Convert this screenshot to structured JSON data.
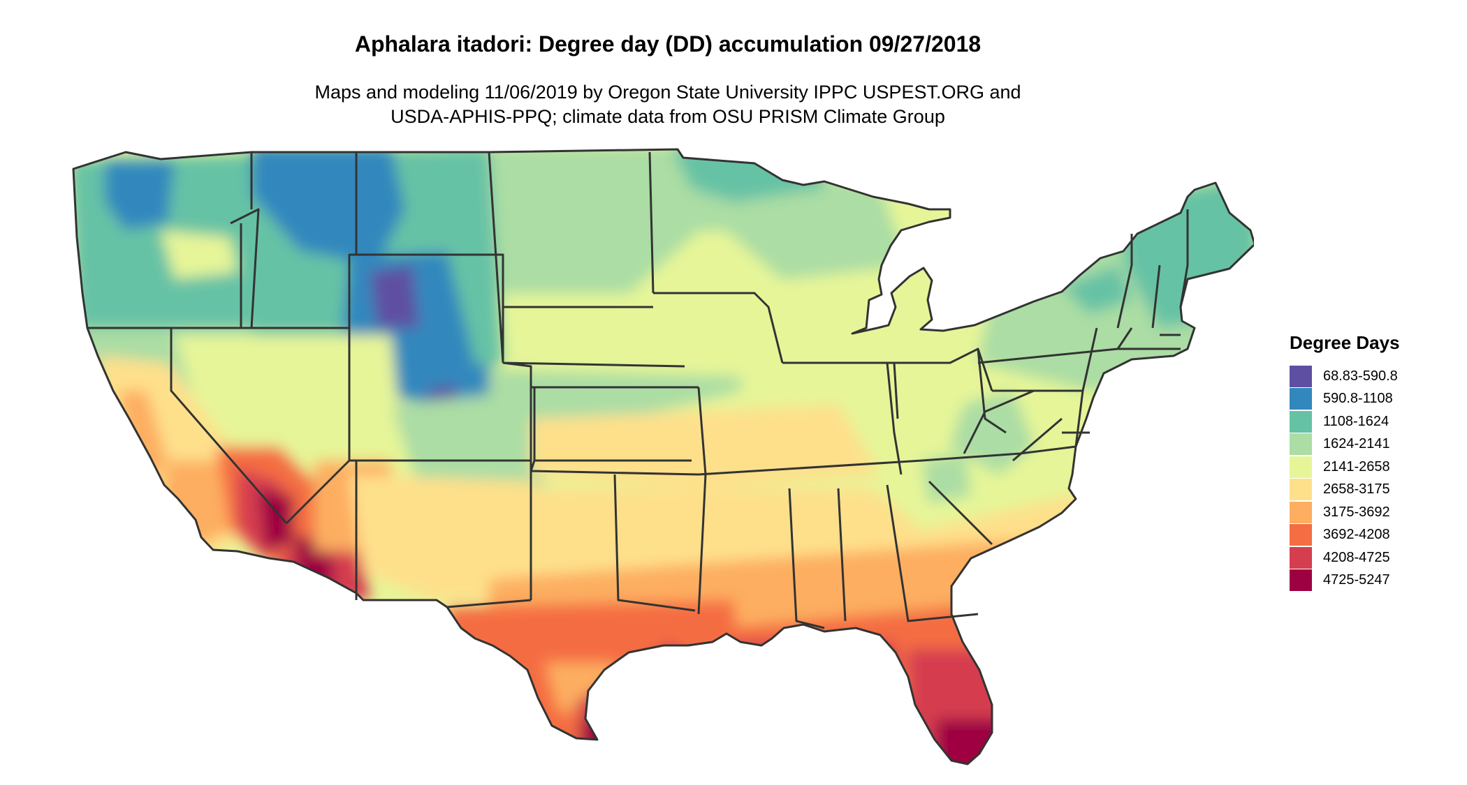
{
  "title": "Aphalara itadori: Degree day (DD) accumulation 09/27/2018",
  "subtitle": {
    "line1": "Maps and modeling 11/06/2019 by Oregon State University IPPC USPEST.ORG and",
    "line2": "USDA-APHIS-PPQ; climate data from OSU PRISM Climate Group"
  },
  "legend": {
    "title": "Degree Days",
    "items": [
      {
        "label": "68.83-590.8",
        "color": "#5e4fa2"
      },
      {
        "label": "590.8-1108",
        "color": "#3288bd"
      },
      {
        "label": "1108-1624",
        "color": "#66c2a5"
      },
      {
        "label": "1624-2141",
        "color": "#abdda4"
      },
      {
        "label": "2141-2658",
        "color": "#e6f598"
      },
      {
        "label": "2658-3175",
        "color": "#fee08b"
      },
      {
        "label": "3175-3692",
        "color": "#fdae61"
      },
      {
        "label": "3692-4208",
        "color": "#f46d43"
      },
      {
        "label": "4208-4725",
        "color": "#d53e4f"
      },
      {
        "label": "4725-5247",
        "color": "#9e0142"
      }
    ]
  },
  "map": {
    "region": "contiguous-united-states",
    "boundary_color": "#333333"
  }
}
